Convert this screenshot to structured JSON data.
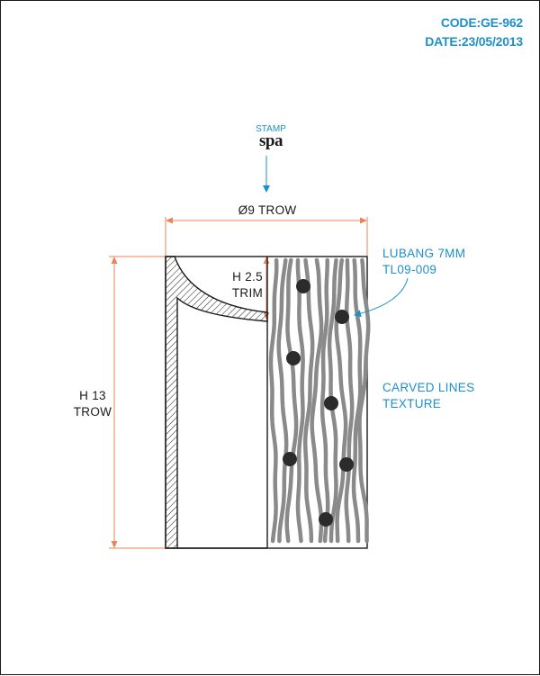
{
  "header": {
    "code": "CODE:GE-962",
    "date": "DATE:23/05/2013"
  },
  "stamp": {
    "label": "STAMP",
    "brand": "spa"
  },
  "dimensions": {
    "diameter": "Ø9 TROW",
    "height_line1": "H 13",
    "height_line2": "TROW",
    "trim_line1": "H 2.5",
    "trim_line2": "TRIM"
  },
  "callouts": {
    "hole_line1": "LUBANG 7MM",
    "hole_line2": "TL09-009",
    "texture_line1": "CARVED LINES",
    "texture_line2": "TEXTURE"
  },
  "colors": {
    "accent_blue": "#1e8fcb",
    "dimension_orange": "#e8835a",
    "texture_gray": "#8a8a8a",
    "hole_dark": "#2b2b2b",
    "outline": "#1a1a1a"
  }
}
